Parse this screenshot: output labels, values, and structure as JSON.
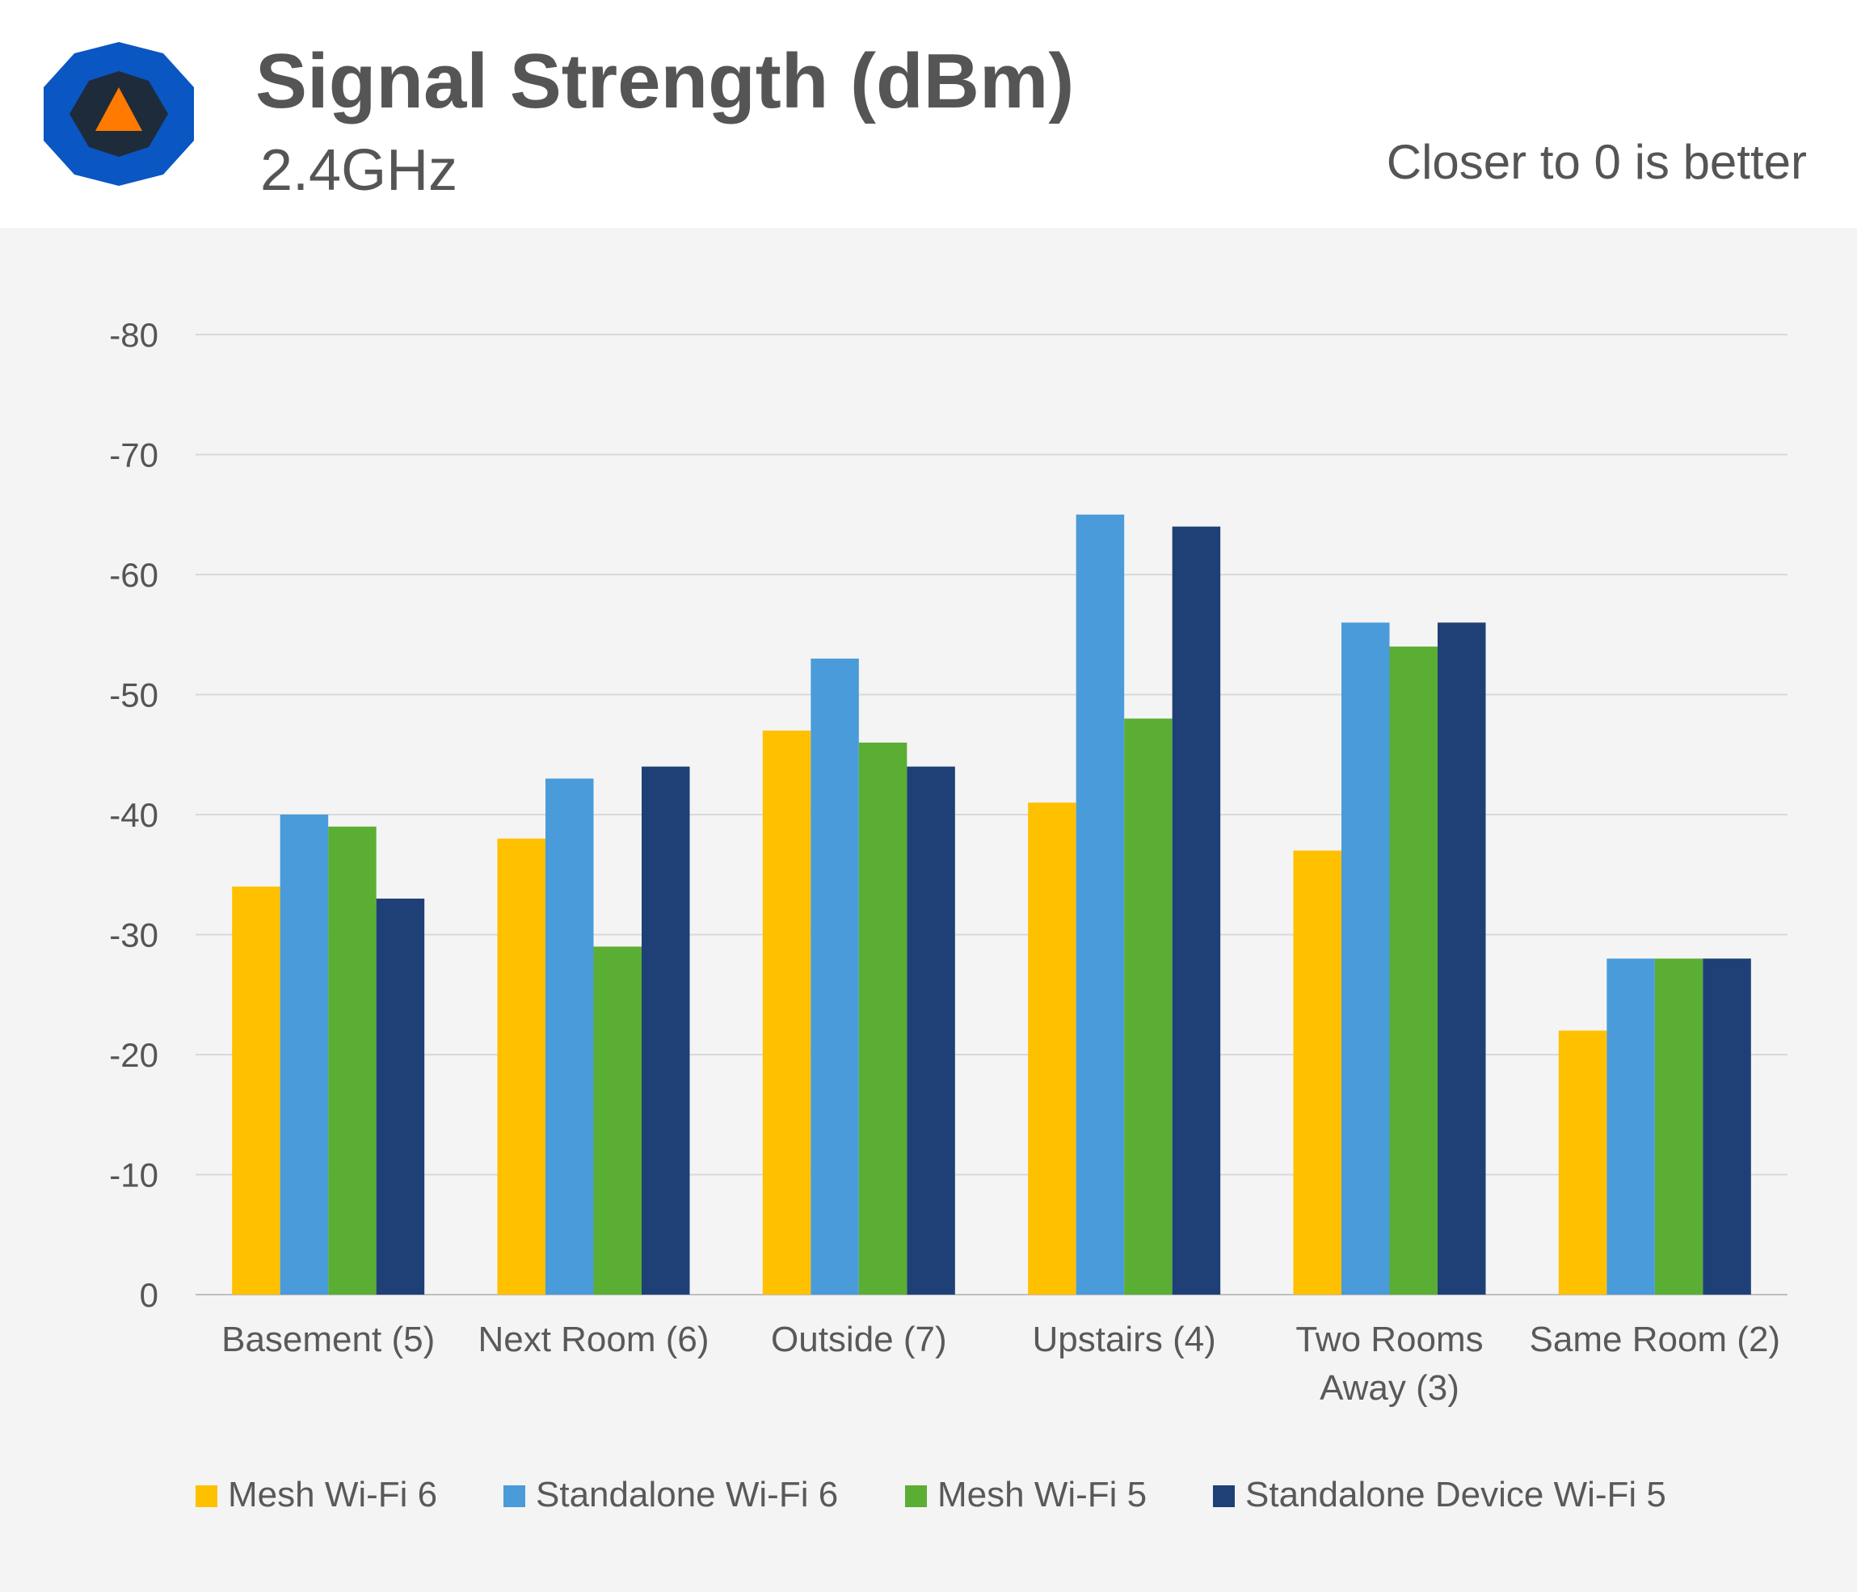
{
  "header": {
    "title": "Signal Strength (dBm)",
    "subtitle": "2.4GHz",
    "note": "Closer to 0 is better",
    "logo_icon": "hexagon-warning-logo-icon"
  },
  "colors": {
    "mesh_wifi6": "#FFC000",
    "standalone_wifi6": "#4A9BD9",
    "mesh_wifi5": "#5BAE34",
    "standalone_device_wifi5": "#1F4077",
    "grid": "#d9d9d9",
    "background": "#f4f4f4"
  },
  "chart_data": {
    "type": "bar",
    "categories": [
      [
        "Basement (5)"
      ],
      [
        "Next Room (6)"
      ],
      [
        "Outside (7)"
      ],
      [
        "Upstairs (4)"
      ],
      [
        "Two Rooms",
        "Away (3)"
      ],
      [
        "Same Room (2)"
      ]
    ],
    "series": [
      {
        "name": "Mesh Wi-Fi 6",
        "color": "#FFC000",
        "values": [
          -34,
          -38,
          -47,
          -41,
          -37,
          -22
        ]
      },
      {
        "name": "Standalone Wi-Fi 6",
        "color": "#4A9BD9",
        "values": [
          -40,
          -43,
          -53,
          -65,
          -56,
          -28
        ]
      },
      {
        "name": "Mesh Wi-Fi 5",
        "color": "#5BAE34",
        "values": [
          -39,
          -29,
          -46,
          -48,
          -54,
          -28
        ]
      },
      {
        "name": "Standalone Device Wi-Fi 5",
        "color": "#1F4077",
        "values": [
          -33,
          -44,
          -44,
          -64,
          -56,
          -28
        ]
      }
    ],
    "y_ticks": [
      "-80",
      "-70",
      "-60",
      "-50",
      "-40",
      "-30",
      "-20",
      "-10",
      "0"
    ],
    "ylim": [
      0,
      -80
    ],
    "grid": true,
    "legend_position": "bottom",
    "xlabel": "",
    "ylabel": ""
  }
}
